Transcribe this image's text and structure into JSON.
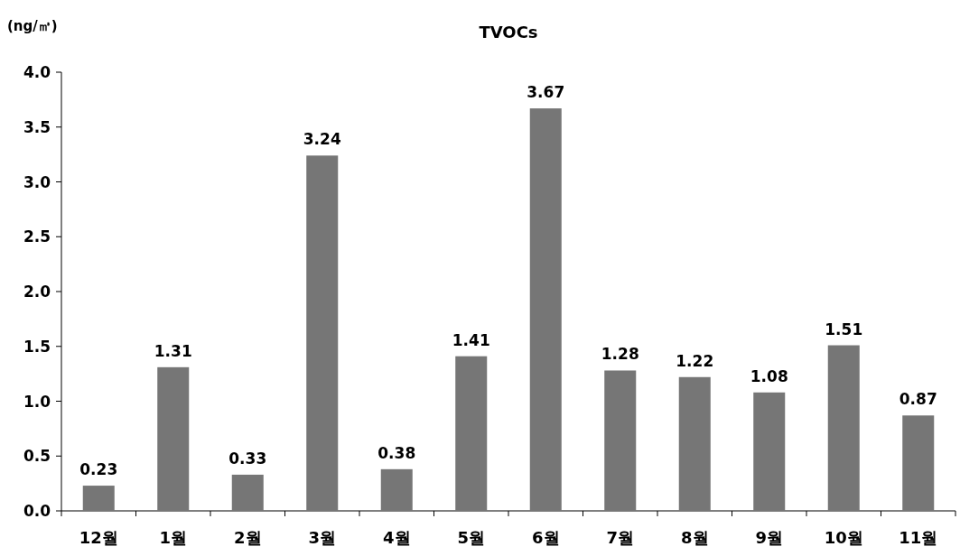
{
  "chart_data": {
    "type": "bar",
    "title": "TVOCs",
    "ylabel": "(ng/㎥)",
    "categories": [
      "12월",
      "1월",
      "2월",
      "3월",
      "4월",
      "5월",
      "6월",
      "7월",
      "8월",
      "9월",
      "10월",
      "11월"
    ],
    "values": [
      0.23,
      1.31,
      0.33,
      3.24,
      0.38,
      1.41,
      3.67,
      1.28,
      1.22,
      1.08,
      1.51,
      0.87
    ],
    "color": "#767676",
    "ylim": [
      0,
      4.0
    ],
    "yticks": [
      {
        "value": 0,
        "label": "0.0"
      },
      {
        "value": 0.5,
        "label": "0.5"
      },
      {
        "value": 1,
        "label": "1.0"
      },
      {
        "value": 1.5,
        "label": "1.5"
      },
      {
        "value": 2,
        "label": "2.0"
      },
      {
        "value": 2.5,
        "label": "2.5"
      },
      {
        "value": 3,
        "label": "3.0"
      },
      {
        "value": 3.5,
        "label": "3.5"
      },
      {
        "value": 4,
        "label": "4.0"
      }
    ],
    "data_labels": true
  }
}
